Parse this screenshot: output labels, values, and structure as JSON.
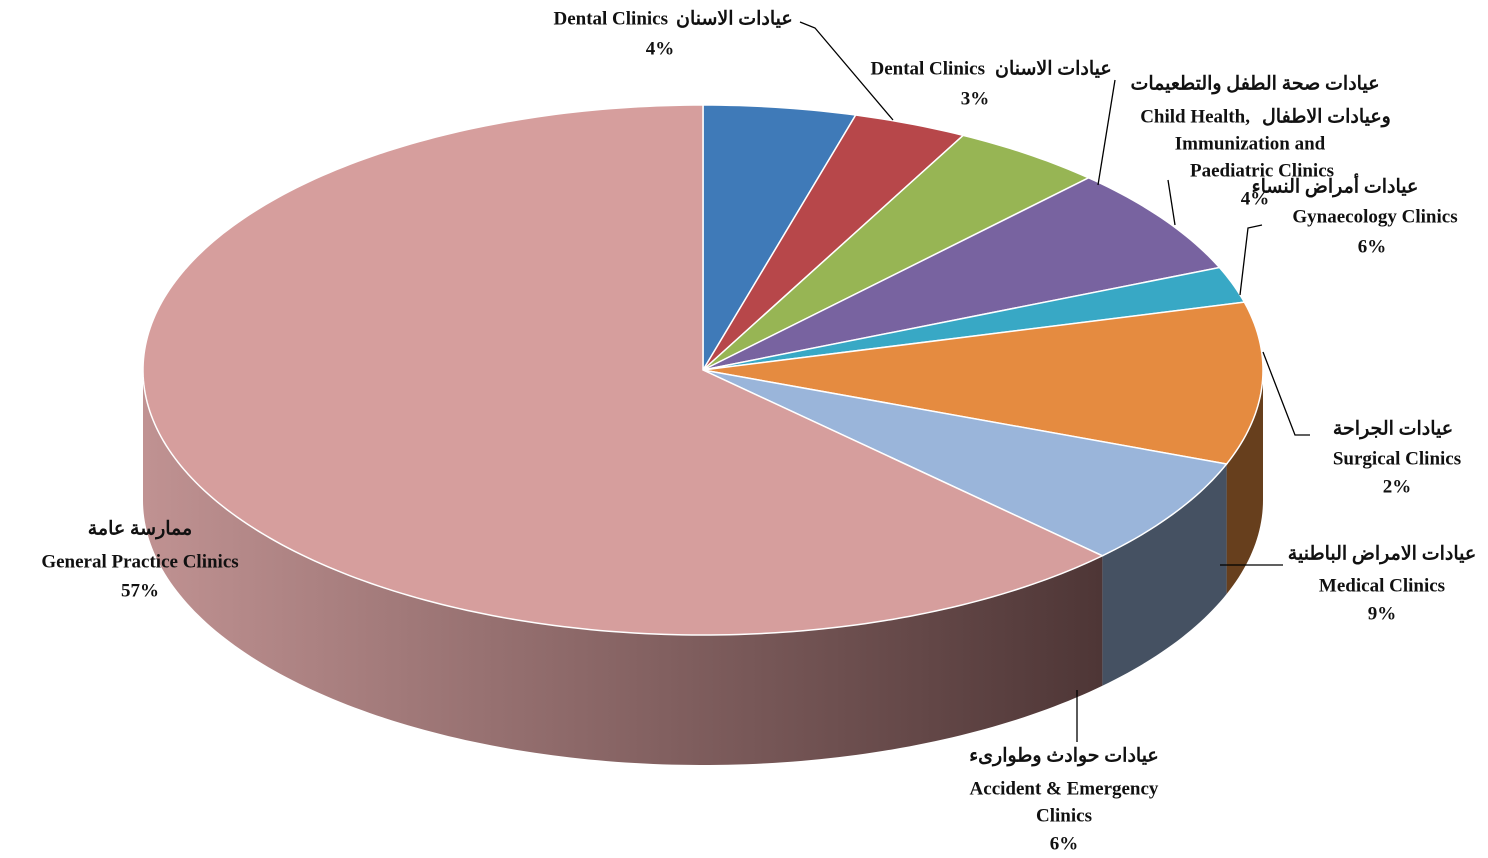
{
  "chart_data": {
    "type": "pie3d",
    "categories": [
      [
        "Dental Clinics"
      ],
      [
        "Dental Clinics"
      ],
      [
        "Child Health,",
        "Immunization and",
        "Paediatric Clinics"
      ],
      [
        "Gynaecology Clinics"
      ],
      [
        "Surgical Clinics"
      ],
      [
        "Medical Clinics"
      ],
      [
        "Accident & Emergency",
        "Clinics"
      ],
      [
        "General Practice Clinics"
      ]
    ],
    "arabic_labels": [
      [
        "عيادات الاسنان"
      ],
      [
        "عيادات الاسنان"
      ],
      [
        "عيادات صحة الطفل والتطعيمات",
        "وعيادات الاطفال"
      ],
      [
        "عيادات أمراض النساء"
      ],
      [
        "عيادات الجراحة"
      ],
      [
        "عيادات الامراض الباطنية"
      ],
      [
        "عيادات حوادث وطوارىء"
      ],
      [
        "ممارسة عامة"
      ]
    ],
    "values": [
      4,
      3,
      4,
      6,
      2,
      9,
      6,
      57
    ],
    "value_labels": [
      "4%",
      "3%",
      "4%",
      "6%",
      "2%",
      "9%",
      "6%",
      "57%"
    ],
    "colors": [
      "#3f7ab8",
      "#b7474a",
      "#97b554",
      "#7863a0",
      "#38a8c5",
      "#e58b40",
      "#9ab5da",
      "#d69e9d"
    ]
  }
}
